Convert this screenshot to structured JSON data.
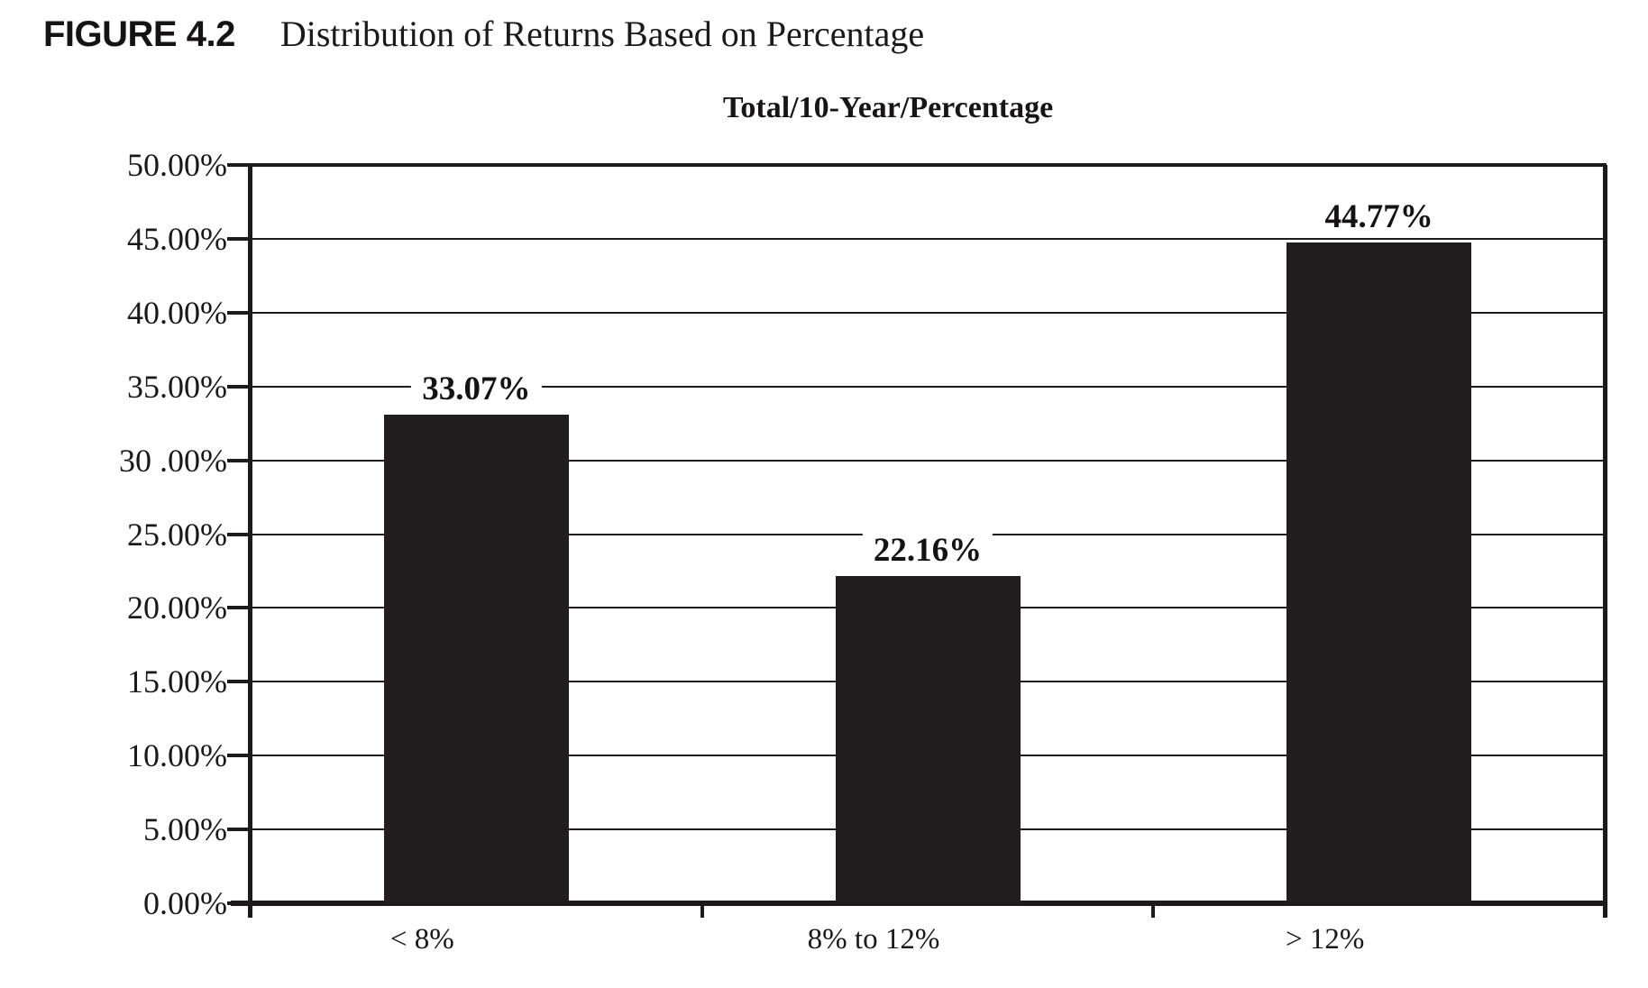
{
  "figure": {
    "label": "FIGURE 4.2",
    "title": "Distribution of Returns Based on Percentage"
  },
  "chart_data": {
    "type": "bar",
    "title": "Total/10-Year/Percentage",
    "categories": [
      "< 8%",
      "8% to 12%",
      "> 12%"
    ],
    "values": [
      33.07,
      22.16,
      44.77
    ],
    "value_labels": [
      "33.07%",
      "22.16%",
      "44.77%"
    ],
    "ylim": [
      0,
      50
    ],
    "ytick_step": 5,
    "ytick_labels": [
      "0.00%",
      "5.00%",
      "10.00%",
      "15.00%",
      "20.00%",
      "25.00%",
      "30 .00%",
      "35.00%",
      "40.00%",
      "45.00%",
      "50.00%"
    ],
    "xlabel": "",
    "ylabel": "",
    "grid": true,
    "legend": "none",
    "bar_color": "#221e1f",
    "line_color": "#1d1a1b",
    "background_color": "#ffffff"
  }
}
